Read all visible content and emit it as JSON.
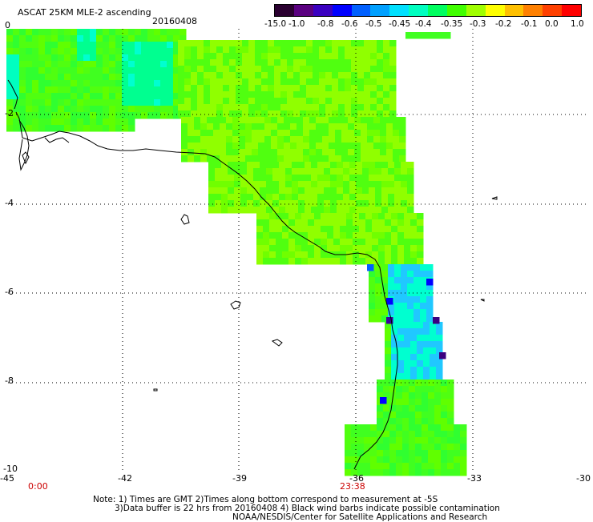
{
  "header": {
    "title": "ASCAT 25KM MLE-2 ascending",
    "date": "20160408"
  },
  "colorbar": {
    "labels": [
      "-15.0",
      "-1.0",
      "-0.8",
      "-0.6",
      "-0.5",
      "-0.45",
      "-0.4",
      "-0.35",
      "-0.3",
      "-0.2",
      "-0.1",
      "0.0",
      "1.0"
    ],
    "colors": [
      "#2a0030",
      "#5a0080",
      "#3a00c0",
      "#0000ff",
      "#0060ff",
      "#00a0ff",
      "#00e0ff",
      "#00ffc0",
      "#00ff60",
      "#40ff00",
      "#a0ff00",
      "#ffff00",
      "#ffc000",
      "#ff8000",
      "#ff4000",
      "#ff0000"
    ]
  },
  "axes": {
    "x_labels": [
      "-45",
      "-42",
      "-39",
      "-36",
      "-33",
      "-30"
    ],
    "y_labels": [
      "0",
      "-2",
      "-4",
      "-6",
      "-8",
      "-10"
    ]
  },
  "times": {
    "start": "0:00",
    "end": "23:38"
  },
  "notes": {
    "line1": "Note: 1) Times are GMT 2)Times along bottom correspond to measurement at -5S",
    "line2": "3)Data buffer is 22 hrs from 20160408 4) Black wind barbs indicate possible contamination",
    "line3": "NOAA/NESDIS/Center for Satellite Applications and Research"
  }
}
